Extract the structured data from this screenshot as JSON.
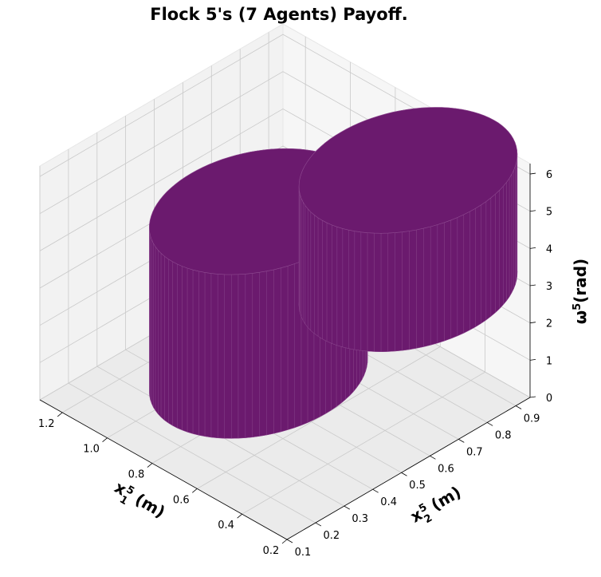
{
  "chart_data": {
    "type": "surface3d",
    "title": "Flock 5's (7 Agents) Payoff.",
    "x_axis": {
      "label_base": "x",
      "label_sub": "1",
      "label_sup": "5",
      "label_unit": " (m)",
      "ticks": [
        "0.2",
        "0.4",
        "0.6",
        "0.8",
        "1.0",
        "1.2"
      ],
      "range": [
        0.2,
        1.3
      ]
    },
    "y_axis": {
      "label_base": "x",
      "label_sub": "2",
      "label_sup": "5",
      "label_unit": " (m)",
      "ticks": [
        "0.1",
        "0.2",
        "0.3",
        "0.4",
        "0.5",
        "0.6",
        "0.7",
        "0.8",
        "0.9"
      ],
      "range": [
        0.1,
        0.95
      ]
    },
    "z_axis": {
      "label_base": "ω",
      "label_sup": "5",
      "label_unit": "(rad)",
      "ticks": [
        "0",
        "1",
        "2",
        "3",
        "4",
        "5",
        "6"
      ],
      "range": [
        0,
        6.28
      ]
    },
    "grid": true,
    "surface_color": "#6b1a6e",
    "surface_edge_color": "#8e4a90",
    "surfaces": [
      {
        "name": "upper cylinder",
        "center": [
          0.45,
          0.72
        ],
        "radius": 0.3,
        "z_range": [
          3.1,
          6.28
        ]
      },
      {
        "name": "lower cylinder",
        "center": [
          0.9,
          0.55
        ],
        "radius": 0.3,
        "z_range": [
          0.0,
          4.4
        ]
      }
    ]
  }
}
